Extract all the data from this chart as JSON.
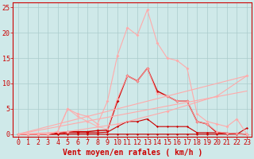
{
  "background_color": "#cfe9e9",
  "grid_color": "#aacccc",
  "xlabel": "Vent moyen/en rafales ( km/h )",
  "xlabel_color": "#cc0000",
  "xlabel_fontsize": 7,
  "tick_color": "#cc0000",
  "tick_fontsize": 6,
  "xlim": [
    -0.5,
    23.5
  ],
  "ylim": [
    -0.5,
    26
  ],
  "yticks": [
    0,
    5,
    10,
    15,
    20,
    25
  ],
  "xticks": [
    0,
    1,
    2,
    3,
    4,
    5,
    6,
    7,
    8,
    9,
    10,
    11,
    12,
    13,
    14,
    15,
    16,
    17,
    18,
    19,
    20,
    21,
    22,
    23
  ],
  "lines": [
    {
      "x": [
        0,
        1,
        2,
        3,
        4,
        5,
        6,
        7,
        8,
        9,
        10,
        11,
        12,
        13,
        14,
        15,
        16,
        17,
        18,
        19,
        20,
        21,
        22,
        23
      ],
      "y": [
        0,
        0,
        0,
        0,
        0,
        0,
        0,
        0,
        0,
        0,
        0,
        0,
        0,
        0,
        0,
        0,
        0,
        0,
        0,
        0,
        0,
        0,
        0,
        1.2
      ],
      "color": "#cc0000",
      "linewidth": 0.8,
      "marker": "s",
      "markersize": 1.5,
      "alpha": 1.0
    },
    {
      "x": [
        0,
        1,
        2,
        3,
        4,
        5,
        6,
        7,
        8,
        9,
        10,
        11,
        12,
        13,
        14,
        15,
        16,
        17,
        18,
        19,
        20,
        21,
        22,
        23
      ],
      "y": [
        0,
        0,
        0,
        0,
        0,
        0.3,
        0.3,
        0.3,
        0.3,
        0.4,
        1.5,
        2.5,
        2.5,
        3.0,
        1.5,
        1.5,
        1.5,
        1.5,
        0.3,
        0.3,
        0.3,
        0.2,
        0.1,
        0.0
      ],
      "color": "#cc0000",
      "linewidth": 0.8,
      "marker": "s",
      "markersize": 1.5,
      "alpha": 1.0
    },
    {
      "x": [
        0,
        1,
        2,
        3,
        4,
        5,
        6,
        7,
        8,
        9,
        10,
        11,
        12,
        13,
        14,
        15,
        16,
        17,
        18,
        19,
        20,
        21,
        22,
        23
      ],
      "y": [
        0,
        0,
        0,
        0,
        0.2,
        0.5,
        0.5,
        0.5,
        0.7,
        0.8,
        6.5,
        11.5,
        10.5,
        13.0,
        8.5,
        7.5,
        6.5,
        6.5,
        2.5,
        2.0,
        0.3,
        0.2,
        0.1,
        0.0
      ],
      "color": "#cc0000",
      "linewidth": 1.0,
      "marker": "D",
      "markersize": 2.0,
      "alpha": 1.0
    },
    {
      "x": [
        0,
        23
      ],
      "y": [
        0,
        11.5
      ],
      "color": "#ffaaaa",
      "linewidth": 0.8,
      "marker": "D",
      "markersize": 0,
      "alpha": 1.0
    },
    {
      "x": [
        0,
        23
      ],
      "y": [
        0,
        8.5
      ],
      "color": "#ffaaaa",
      "linewidth": 0.8,
      "marker": "D",
      "markersize": 0,
      "alpha": 1.0
    },
    {
      "x": [
        0,
        1,
        2,
        3,
        4,
        5,
        6,
        7,
        8,
        9,
        10,
        11,
        12,
        13,
        14,
        15,
        16,
        17,
        18,
        19,
        20,
        21,
        22,
        23
      ],
      "y": [
        0,
        0,
        0,
        0,
        0.5,
        5.0,
        4.0,
        3.5,
        2.0,
        6.5,
        15.5,
        21.0,
        19.5,
        24.5,
        18.0,
        15.0,
        14.5,
        13.0,
        4.0,
        2.5,
        2.0,
        1.5,
        3.0,
        0.0
      ],
      "color": "#ffaaaa",
      "linewidth": 0.8,
      "marker": "D",
      "markersize": 2.0,
      "alpha": 1.0
    },
    {
      "x": [
        0,
        1,
        2,
        3,
        4,
        5,
        6,
        7,
        8,
        9,
        10,
        11,
        12,
        13,
        14,
        15,
        16,
        17,
        18,
        19,
        20,
        21,
        22,
        23
      ],
      "y": [
        0,
        0,
        0,
        0,
        0.5,
        5.0,
        3.5,
        2.5,
        1.5,
        1.0,
        7.0,
        11.5,
        10.5,
        13.0,
        8.0,
        7.5,
        6.5,
        6.5,
        2.5,
        2.0,
        0.5,
        0.2,
        0.1,
        0.0
      ],
      "color": "#ffaaaa",
      "linewidth": 0.8,
      "marker": "D",
      "markersize": 2.0,
      "alpha": 0.85
    },
    {
      "x": [
        0,
        5,
        10,
        15,
        20,
        23
      ],
      "y": [
        0,
        0.5,
        2.0,
        4.5,
        7.5,
        11.5
      ],
      "color": "#ffaaaa",
      "linewidth": 0.8,
      "marker": "D",
      "markersize": 2.0,
      "alpha": 1.0
    }
  ]
}
